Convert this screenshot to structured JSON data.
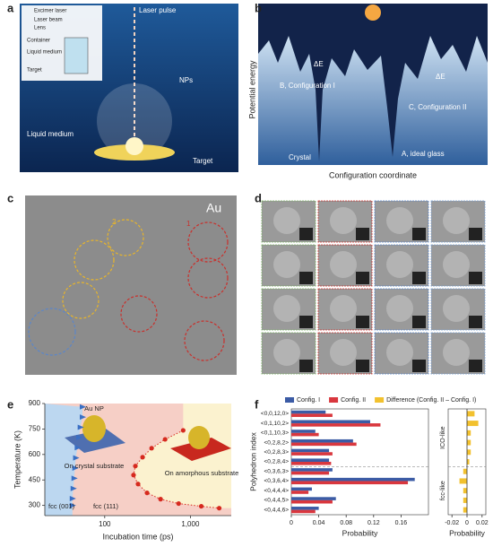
{
  "panel_labels": [
    "a",
    "b",
    "c",
    "d",
    "e",
    "f"
  ],
  "a": {
    "inset": [
      "Excimer laser",
      "Laser beam",
      "Lens",
      "Container",
      "Liquid medium",
      "Target"
    ],
    "labels": [
      "Laser pulse",
      "NPs",
      "Liquid medium",
      "Target"
    ]
  },
  "b": {
    "labels": [
      "ΔE",
      "ΔE",
      "B, Configuration I",
      "C, Configuration II",
      "Crystal",
      "A, ideal glass"
    ],
    "y_label": "Potential energy",
    "x_label": "Configuration coordinate"
  },
  "c": {
    "labels": [
      "Au",
      "2",
      "1"
    ]
  },
  "chart_data": [
    {
      "type": "scatter",
      "log_x": true,
      "x_label": "Incubation time (ps)",
      "y_label": "Temperature (K)",
      "xlim": [
        20,
        3000
      ],
      "ylim": [
        240,
        900
      ],
      "xticks": [
        100,
        {
          "value": 1000,
          "label": "1,000"
        }
      ],
      "yticks": [
        300,
        450,
        600,
        750,
        900
      ],
      "annotations": [
        "Au NP",
        "On crystal substrate",
        "On amorphous substrate",
        "fcc (001)",
        "fcc (111)"
      ],
      "series": [
        {
          "color": "#d62a1f",
          "marker": "circle",
          "line": "dotted",
          "x": [
            824,
            507,
            353,
            277,
            228,
            217,
            245,
            312,
            449,
            729,
            1340,
            2170
          ],
          "values": [
            742,
            689,
            637,
            584,
            532,
            479,
            426,
            374,
            337,
            311,
            295,
            284
          ]
        },
        {
          "color": "#3a6fc4",
          "marker": "triangle",
          "x": [
            55,
            55,
            52,
            50,
            48,
            46,
            45,
            44,
            43,
            42,
            42
          ],
          "values": [
            880,
            820,
            760,
            700,
            640,
            580,
            520,
            460,
            400,
            340,
            300
          ]
        }
      ]
    },
    {
      "type": "bar",
      "orientation": "horizontal",
      "y_label": "Polyhedron index",
      "x_label": "Probability",
      "categories": [
        "<0,0,12,0>",
        "<0,1,10,2>",
        "<0,1,10,3>",
        "<0,2,8,2>",
        "<0,2,8,3>",
        "<0,2,8,4>",
        "<0,3,6,3>",
        "<0,3,6,4>",
        "<0,4,4,4>",
        "<0,4,4,5>",
        "<0,4,4,6>"
      ],
      "xlim": [
        0,
        0.2
      ],
      "xticks": [
        0,
        0.04,
        0.08,
        0.12,
        0.16
      ],
      "series": [
        {
          "name": "Config. I",
          "color": "#3b5ba5",
          "values": [
            0.05,
            0.115,
            0.035,
            0.09,
            0.055,
            0.055,
            0.06,
            0.18,
            0.03,
            0.065,
            0.04
          ]
        },
        {
          "name": "Config. II",
          "color": "#d9373e",
          "values": [
            0.06,
            0.13,
            0.04,
            0.095,
            0.06,
            0.058,
            0.055,
            0.17,
            0.025,
            0.06,
            0.035
          ]
        }
      ]
    },
    {
      "type": "bar",
      "orientation": "horizontal",
      "x_label": "Probability",
      "xlim": [
        -0.025,
        0.025
      ],
      "xticks": [
        -0.02,
        0,
        0.02
      ],
      "annotations": [
        "ICO-like",
        "fcc-like"
      ],
      "series": [
        {
          "name": "Difference (Config. II – Config. I)",
          "color": "#f2c12e",
          "values": [
            0.01,
            0.015,
            0.005,
            0.005,
            0.005,
            0.003,
            -0.005,
            -0.01,
            -0.005,
            -0.005,
            -0.005
          ]
        }
      ]
    }
  ]
}
